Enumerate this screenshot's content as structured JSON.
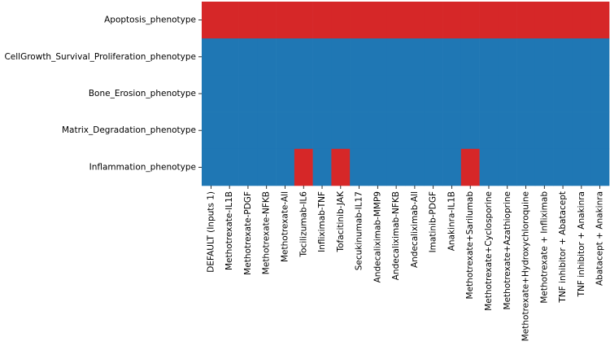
{
  "chart_data": {
    "type": "heatmap",
    "rows": [
      "Apoptosis_phenotype",
      "CellGrowth_Survival_Proliferation_phenotype",
      "Bone_Erosion_phenotype",
      "Matrix_Degradation_phenotype",
      "Inflammation_phenotype"
    ],
    "categories": [
      "DEFAULT (Inputs 1)",
      "Methotrexate-IL1B",
      "Methotrexate-PDGF",
      "Methotrexate-NFKB",
      "Methotrexate-All",
      "Tocilizumab-IL6",
      "Infliximab-TNF",
      "Tofacitinib-JAK",
      "Secukinumab-IL17",
      "Andecaliximab-MMP9",
      "Andecaliximab-NFKB",
      "Andecaliximab-All",
      "Imatinib-PDGF",
      "Anakinra-IL1B",
      "Methotrexate+Sarilumab",
      "Methotrexate+Cyclosporine",
      "Methotrexate+Azathioprine",
      "Methotrexate+Hydroxychloroquine",
      "Methotrexate + Infliximab",
      "TNF inhibitor + Abatacept",
      "TNF inhibitor + Anakinra",
      "Abatacept + Anakinra"
    ],
    "values": [
      [
        1,
        1,
        1,
        1,
        1,
        1,
        1,
        1,
        1,
        1,
        1,
        1,
        1,
        1,
        1,
        1,
        1,
        1,
        1,
        1,
        1,
        1
      ],
      [
        0,
        0,
        0,
        0,
        0,
        0,
        0,
        0,
        0,
        0,
        0,
        0,
        0,
        0,
        0,
        0,
        0,
        0,
        0,
        0,
        0,
        0
      ],
      [
        0,
        0,
        0,
        0,
        0,
        0,
        0,
        0,
        0,
        0,
        0,
        0,
        0,
        0,
        0,
        0,
        0,
        0,
        0,
        0,
        0,
        0
      ],
      [
        0,
        0,
        0,
        0,
        0,
        0,
        0,
        0,
        0,
        0,
        0,
        0,
        0,
        0,
        0,
        0,
        0,
        0,
        0,
        0,
        0,
        0
      ],
      [
        0,
        0,
        0,
        0,
        0,
        1,
        0,
        1,
        0,
        0,
        0,
        0,
        0,
        0,
        1,
        0,
        0,
        0,
        0,
        0,
        0,
        0
      ]
    ],
    "zlim": [
      0,
      1
    ],
    "cmap": [
      "#1f77b4",
      "#d62728"
    ]
  }
}
